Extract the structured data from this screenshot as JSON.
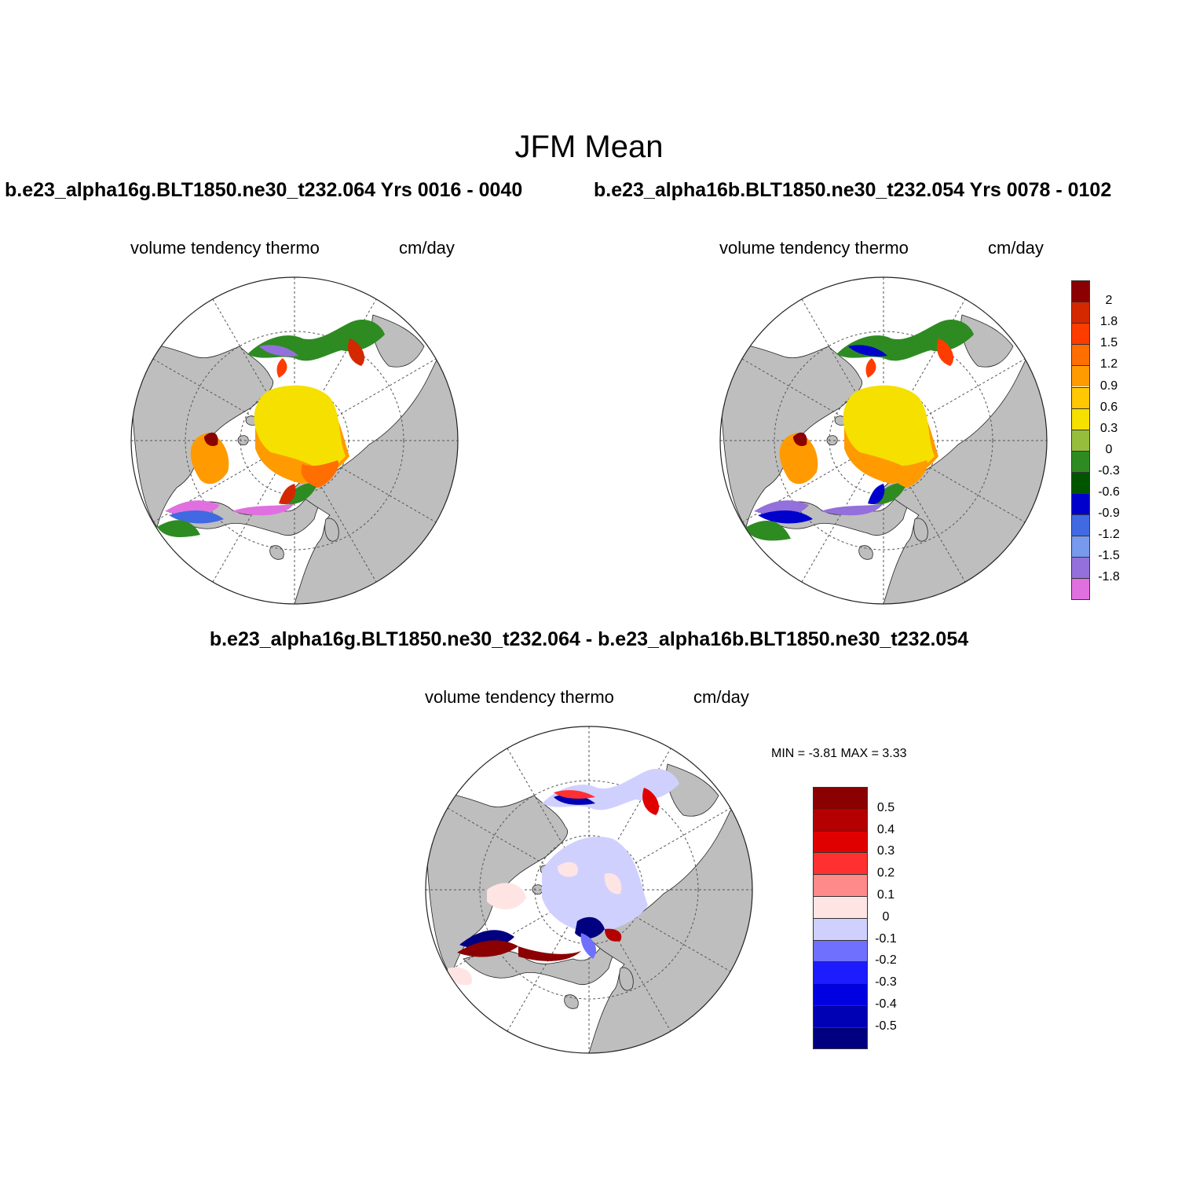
{
  "figure": {
    "main_title": "JFM Mean",
    "case1_title": "b.e23_alpha16g.BLT1850.ne30_t232.064  Yrs 0016 - 0040",
    "case2_title": "b.e23_alpha16b.BLT1850.ne30_t232.054  Yrs 0078 - 0102",
    "diff_title": "b.e23_alpha16g.BLT1850.ne30_t232.064 - b.e23_alpha16b.BLT1850.ne30_t232.054"
  },
  "panels": {
    "case1": {
      "variable": "volume tendency thermo",
      "units": "cm/day"
    },
    "case2": {
      "variable": "volume tendency thermo",
      "units": "cm/day"
    },
    "diff": {
      "variable": "volume tendency thermo",
      "units": "cm/day",
      "stats": "MIN =  -3.81 MAX =   3.33"
    }
  },
  "colorbars": {
    "main": {
      "labels": [
        "2",
        "1.8",
        "1.5",
        "1.2",
        "0.9",
        "0.6",
        "0.3",
        "0",
        "-0.3",
        "-0.6",
        "-0.9",
        "-1.2",
        "-1.5",
        "-1.8"
      ],
      "colors": [
        "#8b0000",
        "#d42800",
        "#ff3c00",
        "#ff6e00",
        "#ff9a00",
        "#ffc800",
        "#f5e000",
        "#96be3c",
        "#2e8b22",
        "#005500",
        "#0000cd",
        "#4169e1",
        "#7799ee",
        "#9370db",
        "#e070e0"
      ]
    },
    "diff": {
      "labels": [
        "0.5",
        "0.4",
        "0.3",
        "0.2",
        "0.1",
        "0",
        "-0.1",
        "-0.2",
        "-0.3",
        "-0.4",
        "-0.5"
      ],
      "colors": [
        "#8b0000",
        "#b40000",
        "#e10000",
        "#ff3030",
        "#ff8a8a",
        "#ffe4e4",
        "#d0d0ff",
        "#7070ff",
        "#1c1cff",
        "#0000e0",
        "#0000b4",
        "#000080"
      ]
    }
  },
  "colors": {
    "land": "#bebebe",
    "ocean": "#ffffff",
    "grid": "#555555"
  }
}
